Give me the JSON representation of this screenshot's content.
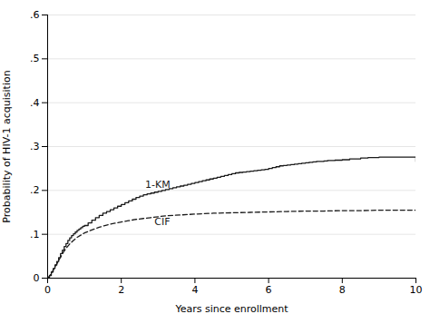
{
  "chart_data": {
    "type": "line",
    "xlabel": "Years since enrollment",
    "ylabel": "Probability of HIV-1 acquisition",
    "xlim": [
      0,
      10
    ],
    "ylim": [
      0,
      0.6
    ],
    "xticks": [
      0,
      2,
      4,
      6,
      8,
      10
    ],
    "yticks": [
      0,
      {
        "value": 0.1,
        "label": ".1"
      },
      {
        "value": 0.2,
        "label": ".2"
      },
      {
        "value": 0.3,
        "label": ".3"
      },
      {
        "value": 0.4,
        "label": ".4"
      },
      {
        "value": 0.5,
        "label": ".5"
      },
      {
        "value": 0.6,
        "label": ".6"
      }
    ],
    "grid": "y",
    "color": "#1a1a1a",
    "series": [
      {
        "name": "1-KM",
        "type": "step",
        "line_style": "solid",
        "x": [
          0.0,
          0.05,
          0.1,
          0.15,
          0.2,
          0.25,
          0.3,
          0.35,
          0.4,
          0.45,
          0.5,
          0.55,
          0.6,
          0.65,
          0.7,
          0.75,
          0.8,
          0.85,
          0.9,
          0.95,
          1.0,
          1.1,
          1.2,
          1.3,
          1.4,
          1.5,
          1.6,
          1.7,
          1.8,
          1.9,
          2.0,
          2.1,
          2.2,
          2.3,
          2.4,
          2.5,
          2.6,
          2.7,
          2.8,
          2.9,
          3.0,
          3.1,
          3.2,
          3.3,
          3.4,
          3.5,
          3.6,
          3.7,
          3.8,
          3.9,
          4.0,
          4.1,
          4.2,
          4.3,
          4.4,
          4.5,
          4.6,
          4.7,
          4.8,
          4.9,
          5.0,
          5.1,
          5.2,
          5.3,
          5.4,
          5.5,
          5.6,
          5.7,
          5.8,
          5.9,
          6.0,
          6.1,
          6.2,
          6.3,
          6.4,
          6.5,
          6.6,
          6.7,
          6.8,
          6.9,
          7.0,
          7.1,
          7.2,
          7.3,
          7.4,
          7.5,
          7.6,
          7.8,
          8.0,
          8.2,
          8.5,
          8.7,
          9.0,
          10.0
        ],
        "values": [
          0.0,
          0.006,
          0.014,
          0.022,
          0.03,
          0.038,
          0.047,
          0.056,
          0.064,
          0.072,
          0.079,
          0.086,
          0.092,
          0.097,
          0.101,
          0.105,
          0.109,
          0.112,
          0.115,
          0.118,
          0.12,
          0.126,
          0.132,
          0.138,
          0.143,
          0.148,
          0.152,
          0.156,
          0.16,
          0.164,
          0.168,
          0.172,
          0.176,
          0.18,
          0.184,
          0.187,
          0.19,
          0.192,
          0.194,
          0.196,
          0.198,
          0.2,
          0.202,
          0.204,
          0.206,
          0.208,
          0.21,
          0.212,
          0.214,
          0.216,
          0.218,
          0.22,
          0.222,
          0.224,
          0.226,
          0.228,
          0.23,
          0.232,
          0.234,
          0.236,
          0.238,
          0.24,
          0.241,
          0.242,
          0.243,
          0.244,
          0.245,
          0.246,
          0.247,
          0.248,
          0.25,
          0.252,
          0.254,
          0.256,
          0.257,
          0.258,
          0.259,
          0.26,
          0.261,
          0.262,
          0.263,
          0.264,
          0.265,
          0.266,
          0.266,
          0.267,
          0.268,
          0.269,
          0.27,
          0.272,
          0.274,
          0.275,
          0.276,
          0.266
        ]
      },
      {
        "name": "CIF",
        "type": "line",
        "line_style": "dashed",
        "x": [
          0.0,
          0.05,
          0.1,
          0.15,
          0.2,
          0.25,
          0.3,
          0.35,
          0.4,
          0.45,
          0.5,
          0.6,
          0.7,
          0.8,
          0.9,
          1.0,
          1.2,
          1.4,
          1.6,
          1.8,
          2.0,
          2.2,
          2.4,
          2.6,
          2.8,
          3.0,
          3.2,
          3.4,
          3.6,
          3.8,
          4.0,
          4.5,
          5.0,
          5.5,
          6.0,
          6.5,
          7.0,
          7.5,
          8.0,
          8.5,
          9.0,
          10.0
        ],
        "values": [
          0.0,
          0.005,
          0.011,
          0.018,
          0.026,
          0.033,
          0.04,
          0.048,
          0.055,
          0.062,
          0.068,
          0.078,
          0.086,
          0.093,
          0.098,
          0.103,
          0.11,
          0.116,
          0.121,
          0.125,
          0.128,
          0.131,
          0.134,
          0.136,
          0.138,
          0.14,
          0.142,
          0.143,
          0.144,
          0.145,
          0.146,
          0.148,
          0.149,
          0.15,
          0.151,
          0.152,
          0.153,
          0.153,
          0.154,
          0.154,
          0.155,
          0.155
        ]
      }
    ],
    "annotations": [
      {
        "text": "1-KM",
        "x": 2.65,
        "y": 0.205
      },
      {
        "text": "CIF",
        "x": 2.9,
        "y": 0.122
      }
    ]
  }
}
